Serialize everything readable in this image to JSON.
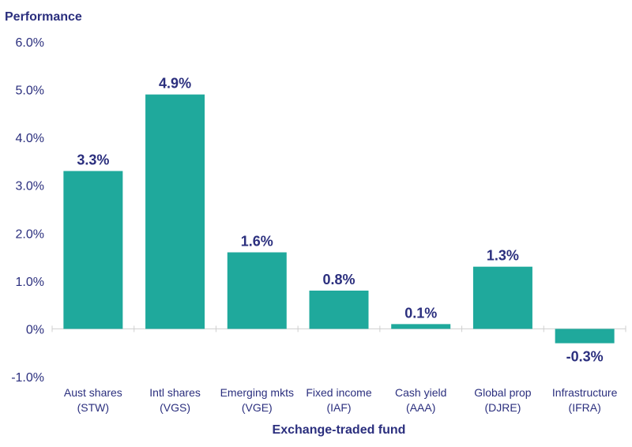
{
  "chart_data": {
    "type": "bar",
    "title": "",
    "ylabel": "Performance",
    "xlabel": "Exchange-traded fund",
    "categories": [
      [
        "Aust shares",
        "(STW)"
      ],
      [
        "Intl shares",
        "(VGS)"
      ],
      [
        "Emerging mkts",
        "(VGE)"
      ],
      [
        "Fixed income",
        "(IAF)"
      ],
      [
        "Cash yield",
        "(AAA)"
      ],
      [
        "Global prop",
        "(DJRE)"
      ],
      [
        "Infrastructure",
        "(IFRA)"
      ]
    ],
    "values": [
      3.3,
      4.9,
      1.6,
      0.8,
      0.1,
      1.3,
      -0.3
    ],
    "data_labels": [
      "3.3%",
      "4.9%",
      "1.6%",
      "0.8%",
      "0.1%",
      "1.3%",
      "-0.3%"
    ],
    "ylim": [
      -1.0,
      6.0
    ],
    "yticks": [
      6.0,
      5.0,
      4.0,
      3.0,
      2.0,
      1.0,
      0,
      -1.0
    ],
    "ytick_labels": [
      "6.0%",
      "5.0%",
      "4.0%",
      "3.0%",
      "2.0%",
      "1.0%",
      "0%",
      "-1.0%"
    ],
    "grid": false,
    "colors": {
      "bar": "#1fa99c",
      "text": "#2b2f7e",
      "axis": "#cfcfcf"
    }
  }
}
